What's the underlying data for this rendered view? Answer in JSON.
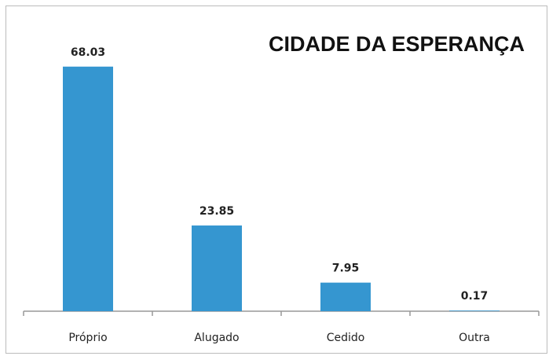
{
  "chart_data": {
    "type": "bar",
    "title": "CIDADE DA ESPERANÇA",
    "categories": [
      "Próprio",
      "Alugado",
      "Cedido",
      "Outra"
    ],
    "values": [
      68.03,
      23.85,
      7.95,
      0.17
    ],
    "color": "#3596d0",
    "ylim": [
      0,
      80
    ]
  }
}
